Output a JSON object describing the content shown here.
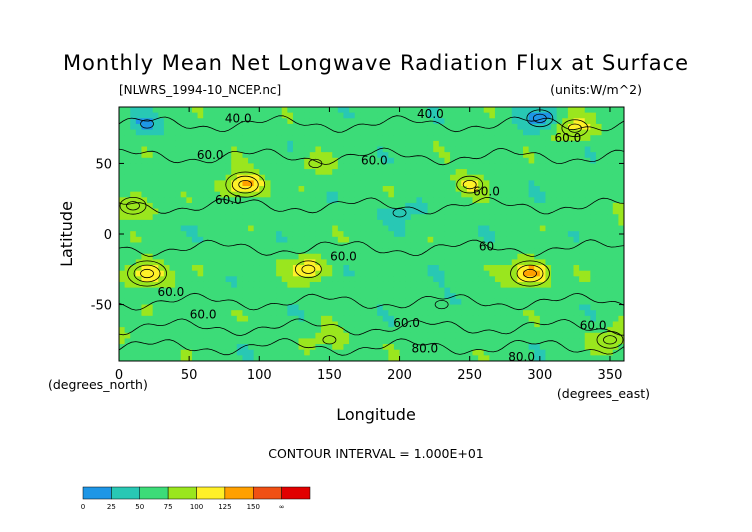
{
  "chart_data": {
    "type": "heatmap",
    "title": "Monthly Mean Net Longwave Radiation Flux at Surface",
    "source_file": "[NLWRS_1994-10_NCEP.nc]",
    "units": "(units:W/m^2)",
    "xlabel": "Longitude",
    "ylabel": "Latitude",
    "x_unit_label": "(degrees_east)",
    "y_unit_label": "(degrees_north)",
    "xlim": [
      0,
      360
    ],
    "ylim": [
      -90,
      90
    ],
    "x_ticks": [
      0,
      50,
      100,
      150,
      200,
      250,
      300,
      350
    ],
    "y_ticks": [
      -50,
      0,
      50
    ],
    "contour_interval_label": "CONTOUR INTERVAL = 1.000E+01",
    "contour_labels": [
      {
        "lon": 85,
        "lat": 82,
        "text": "40.0"
      },
      {
        "lon": 222,
        "lat": 85,
        "text": "40.0"
      },
      {
        "lon": 320,
        "lat": 68,
        "text": "60.0"
      },
      {
        "lon": 65,
        "lat": 56,
        "text": "60.0"
      },
      {
        "lon": 182,
        "lat": 52,
        "text": "60.0"
      },
      {
        "lon": 262,
        "lat": 30,
        "text": "60.0"
      },
      {
        "lon": 78,
        "lat": 24,
        "text": "60.0"
      },
      {
        "lon": 160,
        "lat": -16,
        "text": "60.0"
      },
      {
        "lon": 37,
        "lat": -41,
        "text": "60.0"
      },
      {
        "lon": 60,
        "lat": -57,
        "text": "60.0"
      },
      {
        "lon": 205,
        "lat": -63,
        "text": "60.0"
      },
      {
        "lon": 338,
        "lat": -65,
        "text": "60.0"
      },
      {
        "lon": 218,
        "lat": -81,
        "text": "80.0"
      },
      {
        "lon": 287,
        "lat": -87,
        "text": "80.0"
      },
      {
        "lon": 262,
        "lat": -9,
        "text": "60"
      }
    ],
    "color_scale": {
      "boundaries": [
        "0",
        "25",
        "50",
        "75",
        "100",
        "125",
        "150",
        "∞"
      ],
      "colors": [
        "#1e96e6",
        "#28c8b4",
        "#3cdc78",
        "#9ae61e",
        "#fff028",
        "#ffa000",
        "#f05014",
        "#e10000"
      ]
    },
    "field_features": [
      {
        "lon": 90,
        "lat": 35,
        "value": 140
      },
      {
        "lon": 20,
        "lat": -28,
        "value": 130
      },
      {
        "lon": 135,
        "lat": -25,
        "value": 115
      },
      {
        "lon": 293,
        "lat": -28,
        "value": 145
      },
      {
        "lon": 10,
        "lat": 20,
        "value": 105
      },
      {
        "lon": 250,
        "lat": 35,
        "value": 100
      },
      {
        "lon": 325,
        "lat": 75,
        "value": 110
      },
      {
        "lon": 140,
        "lat": 50,
        "value": 90
      },
      {
        "lon": 150,
        "lat": -75,
        "value": 95
      },
      {
        "lon": 350,
        "lat": -75,
        "value": 100
      },
      {
        "lon": 200,
        "lat": 15,
        "value": 35
      },
      {
        "lon": 300,
        "lat": 82,
        "value": 20
      },
      {
        "lon": 20,
        "lat": 78,
        "value": 30
      },
      {
        "lon": 230,
        "lat": -50,
        "value": 45
      }
    ]
  }
}
